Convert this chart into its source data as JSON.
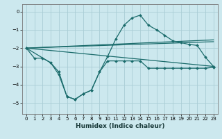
{
  "xlabel": "Humidex (Indice chaleur)",
  "background_color": "#cce8ee",
  "grid_color": "#aacdd6",
  "line_color": "#1a6b6b",
  "xlim": [
    -0.5,
    23.5
  ],
  "ylim": [
    -5.6,
    0.4
  ],
  "yticks": [
    0,
    -1,
    -2,
    -3,
    -4,
    -5
  ],
  "xticks": [
    0,
    1,
    2,
    3,
    4,
    5,
    6,
    7,
    8,
    9,
    10,
    11,
    12,
    13,
    14,
    15,
    16,
    17,
    18,
    19,
    20,
    21,
    22,
    23
  ],
  "curve1_x": [
    0,
    1,
    2,
    3,
    4,
    5,
    6,
    7,
    8,
    9,
    10,
    11,
    12,
    13,
    14,
    15,
    16,
    17,
    18,
    19,
    20,
    21,
    22,
    23
  ],
  "curve1_y": [
    -2.0,
    -2.55,
    -2.55,
    -2.8,
    -3.45,
    -4.65,
    -4.8,
    -4.5,
    -4.3,
    -3.3,
    -2.7,
    -2.7,
    -2.7,
    -2.7,
    -2.7,
    -3.1,
    -3.1,
    -3.1,
    -3.1,
    -3.1,
    -3.1,
    -3.1,
    -3.1,
    -3.05
  ],
  "curve2_x": [
    0,
    3,
    4,
    5,
    6,
    7,
    8,
    9,
    10,
    11,
    12,
    13,
    14,
    15,
    16,
    17,
    18,
    19,
    20,
    21,
    22,
    23
  ],
  "curve2_y": [
    -2.0,
    -2.8,
    -3.3,
    -4.65,
    -4.8,
    -4.5,
    -4.3,
    -3.3,
    -2.45,
    -1.5,
    -0.75,
    -0.35,
    -0.2,
    -0.75,
    -1.0,
    -1.3,
    -1.6,
    -1.7,
    -1.8,
    -1.85,
    -2.5,
    -3.0
  ],
  "line1_x": [
    0,
    23
  ],
  "line1_y": [
    -2.0,
    -1.55
  ],
  "line2_x": [
    0,
    23
  ],
  "line2_y": [
    -2.0,
    -1.65
  ],
  "line3_x": [
    0,
    23
  ],
  "line3_y": [
    -2.0,
    -3.0
  ]
}
